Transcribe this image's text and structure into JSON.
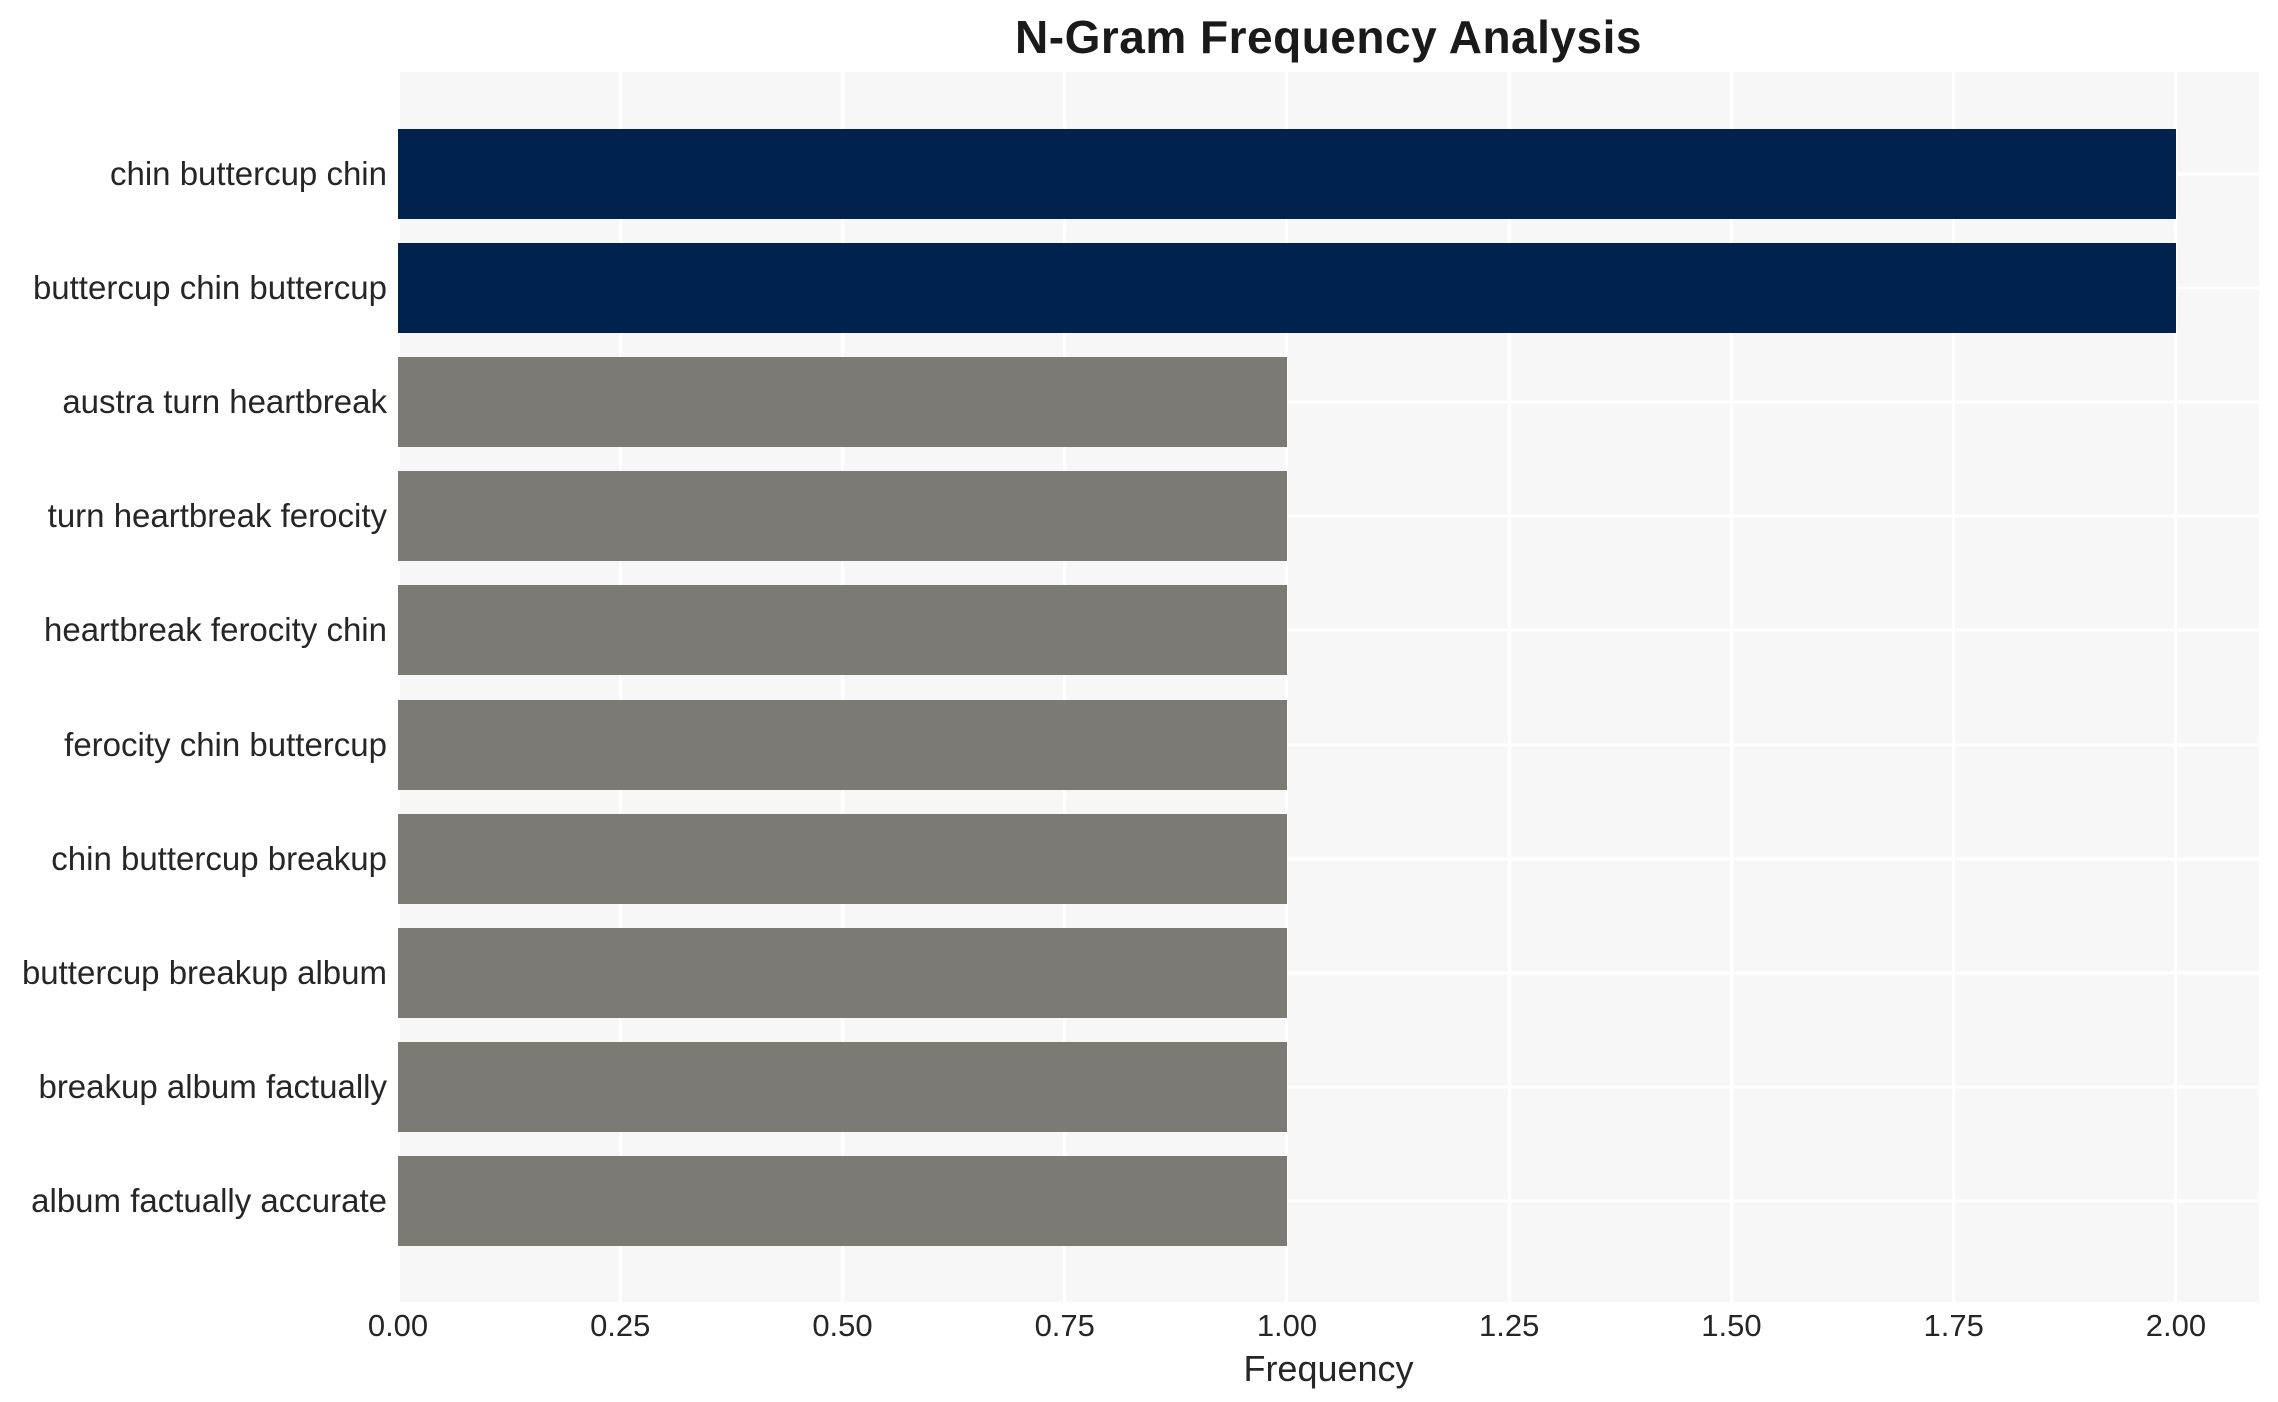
{
  "chart_data": {
    "type": "bar",
    "orientation": "horizontal",
    "title": "N-Gram Frequency Analysis",
    "xlabel": "Frequency",
    "categories": [
      "chin buttercup chin",
      "buttercup chin buttercup",
      "austra turn heartbreak",
      "turn heartbreak ferocity",
      "heartbreak ferocity chin",
      "ferocity chin buttercup",
      "chin buttercup breakup",
      "buttercup breakup album",
      "breakup album factually",
      "album factually accurate"
    ],
    "values": [
      2,
      2,
      1,
      1,
      1,
      1,
      1,
      1,
      1,
      1
    ],
    "bar_colors": [
      "#00224d",
      "#00224d",
      "#7c7a75",
      "#7c7a75",
      "#7c7a75",
      "#7c7a75",
      "#7c7a75",
      "#7c7a75",
      "#7c7a75",
      "#7c7a75"
    ],
    "xlim": [
      0,
      2.0934
    ],
    "xticks": [
      0.0,
      0.25,
      0.5,
      0.75,
      1.0,
      1.25,
      1.5,
      1.75,
      2.0
    ],
    "xtick_labels": [
      "0.00",
      "0.25",
      "0.50",
      "0.75",
      "1.00",
      "1.25",
      "1.50",
      "1.75",
      "2.00"
    ],
    "grid": true,
    "legend": "none",
    "colors": {
      "highlight_bar": "#00224d",
      "default_bar": "#7c7a75",
      "plot_background": "#f7f7f7",
      "grid": "#ffffff",
      "text": "#262626",
      "title_text": "#1a1a1a"
    }
  }
}
